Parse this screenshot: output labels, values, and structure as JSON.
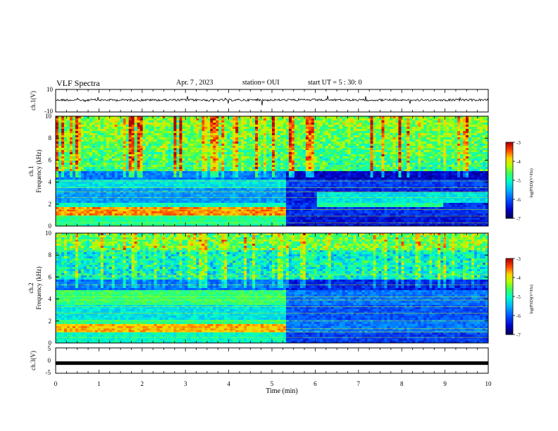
{
  "header": {
    "title": "VLF Spectra",
    "date": "Apr. 7 , 2023",
    "station": "station= OUI",
    "start": "start UT = 5 : 30: 0"
  },
  "chart_data": [
    {
      "type": "line",
      "panel": "ch1_waveform",
      "ylabel": "ch.1(V)",
      "ylim": [
        -10,
        10
      ],
      "yticks": [
        "10",
        "-10"
      ],
      "series": [
        {
          "values": "noise trace around 0 V with occasional spikes"
        }
      ]
    },
    {
      "type": "heatmap",
      "panel": "ch1_spectrogram",
      "ylabel_line1": "ch.1",
      "ylabel_line2": "Frequency (kHz)",
      "ylim": [
        0,
        10
      ],
      "yticks": [
        "0",
        "2",
        "4",
        "6",
        "8",
        "10"
      ],
      "colorbar": {
        "label": "log(PSD)(V²/Hz)",
        "range": [
          -7,
          -3
        ],
        "ticks": [
          "-3",
          "-4",
          "-5",
          "-6",
          "-7"
        ]
      },
      "transition_time_min": 5.35
    },
    {
      "type": "heatmap",
      "panel": "ch2_spectrogram",
      "ylabel_line1": "ch.2",
      "ylabel_line2": "Frequency (kHz)",
      "ylim": [
        0,
        10
      ],
      "yticks": [
        "0",
        "2",
        "4",
        "6",
        "8",
        "10"
      ],
      "colorbar": {
        "label": "log(PSD)(V²/Hz)",
        "range": [
          -7,
          -3
        ],
        "ticks": [
          "-3",
          "-4",
          "-5",
          "-6",
          "-7"
        ]
      },
      "transition_time_min": 5.35
    },
    {
      "type": "line",
      "panel": "ch3_waveform",
      "ylabel": "ch.3(V)",
      "ylim": [
        -5,
        5
      ],
      "yticks": [
        "5",
        "0",
        "-5"
      ],
      "series": [
        {
          "values": "flat trace near -1 V"
        }
      ],
      "xlabel": "Time (min)",
      "xlim": [
        0,
        10
      ],
      "xticks": [
        "0",
        "1",
        "2",
        "3",
        "4",
        "5",
        "6",
        "7",
        "8",
        "9",
        "10"
      ]
    }
  ],
  "colors": {
    "colormap": [
      "#00006e",
      "#0000ff",
      "#00aaff",
      "#00ffcc",
      "#55ff33",
      "#ccff00",
      "#ffcc00",
      "#ff3300",
      "#cc0000",
      "#ffffff"
    ]
  }
}
